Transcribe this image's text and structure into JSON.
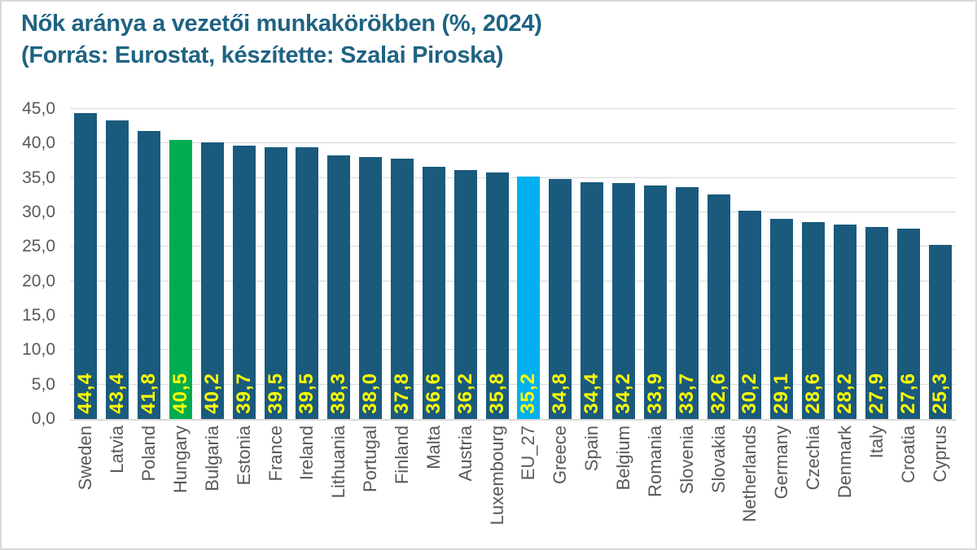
{
  "title": {
    "line1": "Nők aránya a vezetői munkakörökben (%, 2024)",
    "line2": "(Forrás: Eurostat, készítette: Szalai Piroska)"
  },
  "chart_data": {
    "type": "bar",
    "title": "Nők aránya a vezetői munkakörökben (%, 2024)",
    "subtitle": "(Forrás: Eurostat, készítette: Szalai Piroska)",
    "categories": [
      "Sweden",
      "Latvia",
      "Poland",
      "Hungary",
      "Bulgaria",
      "Estonia",
      "France",
      "Ireland",
      "Lithuania",
      "Portugal",
      "Finland",
      "Malta",
      "Austria",
      "Luxembourg",
      "EU_27",
      "Greece",
      "Spain",
      "Belgium",
      "Romania",
      "Slovenia",
      "Slovakia",
      "Netherlands",
      "Germany",
      "Czechia",
      "Denmark",
      "Italy",
      "Croatia",
      "Cyprus"
    ],
    "values": [
      44.4,
      43.4,
      41.8,
      40.5,
      40.2,
      39.7,
      39.5,
      39.5,
      38.3,
      38.0,
      37.8,
      36.6,
      36.2,
      35.8,
      35.2,
      34.8,
      34.4,
      34.2,
      33.9,
      33.7,
      32.6,
      30.2,
      29.1,
      28.6,
      28.2,
      27.9,
      27.6,
      25.3
    ],
    "value_labels": [
      "44,4",
      "43,4",
      "41,8",
      "40,5",
      "40,2",
      "39,7",
      "39,5",
      "39,5",
      "38,3",
      "38,0",
      "37,8",
      "36,6",
      "36,2",
      "35,8",
      "35,2",
      "34,8",
      "34,4",
      "34,2",
      "33,9",
      "33,7",
      "32,6",
      "30,2",
      "29,1",
      "28,6",
      "28,2",
      "27,9",
      "27,6",
      "25,3"
    ],
    "xlabel": "",
    "ylabel": "",
    "ylim": [
      0,
      45
    ],
    "ytick_step": 5,
    "ytick_labels": [
      "0,0",
      "5,0",
      "10,0",
      "15,0",
      "20,0",
      "25,0",
      "30,0",
      "35,0",
      "40,0",
      "45,0"
    ],
    "grid": true,
    "legend": false,
    "colors": {
      "bar_default": "#1a5a7d",
      "highlight_hungary": "#00ac50",
      "highlight_eu27": "#00b0f0",
      "value_label": "#ffff00",
      "axis_text": "#595959",
      "gridline": "#d9d9d9",
      "title_text": "#1f6383"
    },
    "highlighted_bars": {
      "Hungary": "#00ac50",
      "EU_27": "#00b0f0"
    }
  }
}
